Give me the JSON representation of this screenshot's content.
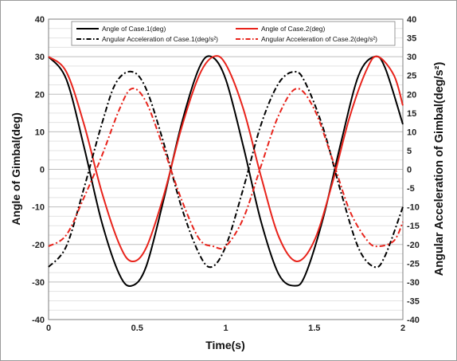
{
  "chart_data": {
    "type": "line",
    "xlabel": "Time(s)",
    "ylabel_left": "Angle of  Gimbal(deg)",
    "ylabel_right": "Angular Acceleration of Gimbal(deg/s²)",
    "xlim": [
      0,
      2
    ],
    "ylim_left": [
      -40,
      40
    ],
    "ylim_right": [
      -40,
      40
    ],
    "x_ticks": [
      "0",
      "0.5",
      "1",
      "1.5",
      "2"
    ],
    "y_ticks_left": [
      "40",
      "30",
      "20",
      "10",
      "0",
      "-10",
      "-20",
      "-30",
      "-40"
    ],
    "y_ticks_right": [
      "40",
      "35",
      "30",
      "25",
      "20",
      "15",
      "10",
      "5",
      "0",
      "-5",
      "-10",
      "-15",
      "-20",
      "-25",
      "-30",
      "-35",
      "-40"
    ],
    "grid": true,
    "legend_position": "top",
    "series": [
      {
        "name": "Angle of Case.1(deg)",
        "axis": "left",
        "color": "#000000",
        "style": "solid",
        "x": [
          0,
          0.1,
          0.2,
          0.3,
          0.4,
          0.47,
          0.55,
          0.65,
          0.75,
          0.85,
          0.92,
          1.0,
          1.1,
          1.2,
          1.3,
          1.39,
          1.45,
          1.55,
          1.65,
          1.75,
          1.84,
          1.9,
          2.0
        ],
        "values": [
          30,
          24,
          6,
          -14,
          -28,
          -31,
          -26,
          -8,
          12,
          27,
          30,
          24,
          6,
          -14,
          -28,
          -31,
          -28,
          -13,
          7,
          25,
          30,
          27,
          12
        ]
      },
      {
        "name": "Angle of Case.2(deg)",
        "axis": "left",
        "color": "#e8231b",
        "style": "solid",
        "x": [
          0,
          0.1,
          0.2,
          0.3,
          0.4,
          0.47,
          0.55,
          0.65,
          0.75,
          0.85,
          0.93,
          1.0,
          1.1,
          1.2,
          1.3,
          1.4,
          1.5,
          1.6,
          1.7,
          1.8,
          1.86,
          1.95,
          2.0
        ],
        "values": [
          30,
          26,
          12,
          -6,
          -20,
          -24.5,
          -21,
          -7,
          11,
          25,
          30,
          28,
          16,
          -2,
          -18,
          -24.5,
          -19,
          -4,
          14,
          27,
          30,
          25,
          17
        ]
      },
      {
        "name": "Angular Acceleration of Case.1(deg/s²)",
        "axis": "right",
        "color": "#000000",
        "style": "dash-dot",
        "x": [
          0,
          0.1,
          0.2,
          0.3,
          0.38,
          0.47,
          0.55,
          0.65,
          0.75,
          0.85,
          0.92,
          1.0,
          1.1,
          1.2,
          1.3,
          1.39,
          1.45,
          1.55,
          1.65,
          1.75,
          1.84,
          1.9,
          2.0
        ],
        "values": [
          -26,
          -20.5,
          -5,
          12,
          23,
          26,
          21.5,
          7,
          -10,
          -22.5,
          -26,
          -20.5,
          -5,
          12,
          23,
          26,
          23,
          11,
          -6,
          -21,
          -26,
          -23,
          -10
        ]
      },
      {
        "name": "Angular Acceleration of Case.2(deg/s²)",
        "axis": "right",
        "color": "#e8231b",
        "style": "dash-dot",
        "x": [
          0,
          0.1,
          0.2,
          0.3,
          0.4,
          0.47,
          0.55,
          0.65,
          0.75,
          0.85,
          0.93,
          1.0,
          1.1,
          1.2,
          1.3,
          1.4,
          1.5,
          1.6,
          1.7,
          1.8,
          1.86,
          1.95,
          2.0
        ],
        "values": [
          -20.5,
          -17.5,
          -7.5,
          3.5,
          16,
          21.5,
          18,
          5.5,
          -8,
          -18.5,
          -20.5,
          -20.5,
          -13,
          1,
          14.5,
          21.5,
          16,
          3,
          -11,
          -19,
          -20.5,
          -19,
          -14
        ]
      }
    ]
  }
}
